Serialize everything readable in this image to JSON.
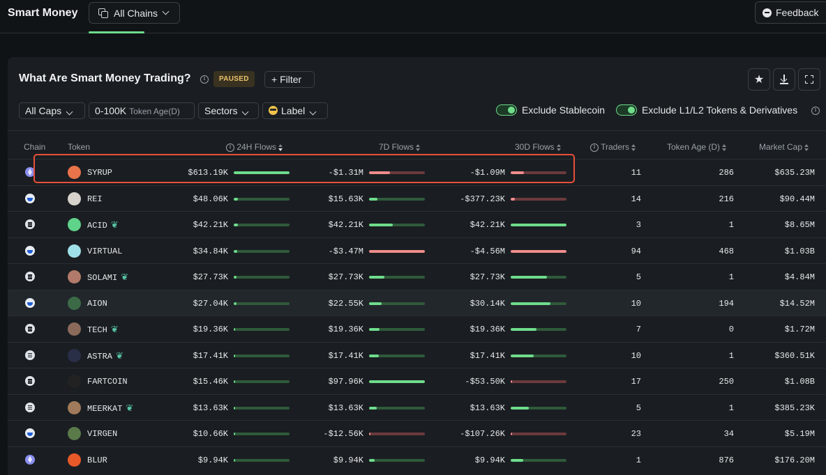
{
  "topbar": {
    "brand": "Smart Money",
    "chains_label": "All Chains",
    "feedback_label": "Feedback"
  },
  "panel": {
    "title": "What Are Smart Money Trading?",
    "paused": "PAUSED",
    "filter_label": "+ Filter",
    "chips": {
      "caps": "All Caps",
      "age_range": "0-100K",
      "age_sub": "Token Age(D)",
      "sectors": "Sectors",
      "label": "Label"
    },
    "toggles": {
      "stablecoin": "Exclude Stablecoin",
      "l1l2": "Exclude L1/L2 Tokens & Derivatives"
    }
  },
  "table": {
    "headers": {
      "chain": "Chain",
      "token": "Token",
      "flows24": "24H Flows",
      "flows7": "7D Flows",
      "flows30": "30D Flows",
      "traders": "Traders",
      "age": "Token Age (D)",
      "mcap": "Market Cap"
    },
    "rows": [
      {
        "chain": "eth",
        "token": "SYRUP",
        "leaf": false,
        "icon": "#e9744a",
        "f24": "$613.19K",
        "b24": 1.0,
        "n24": false,
        "f7": "-$1.31M",
        "b7": 0.38,
        "n7": true,
        "f30": "-$1.09M",
        "b30": 0.24,
        "n30": true,
        "traders": "11",
        "age": "286",
        "mcap": "$635.23M"
      },
      {
        "chain": "base",
        "token": "REI",
        "leaf": false,
        "icon": "#d8d2cc",
        "f24": "$48.06K",
        "b24": 0.08,
        "n24": false,
        "f7": "$15.63K",
        "b7": 0.15,
        "n7": false,
        "f30": "-$377.23K",
        "b30": 0.08,
        "n30": true,
        "traders": "14",
        "age": "216",
        "mcap": "$90.44M"
      },
      {
        "chain": "sol",
        "token": "ACID",
        "leaf": true,
        "icon": "#5fd38a",
        "f24": "$42.21K",
        "b24": 0.07,
        "n24": false,
        "f7": "$42.21K",
        "b7": 0.42,
        "n7": false,
        "f30": "$42.21K",
        "b30": 1.0,
        "n30": false,
        "traders": "3",
        "age": "1",
        "mcap": "$8.65M"
      },
      {
        "chain": "base",
        "token": "VIRTUAL",
        "leaf": false,
        "icon": "#9fe0e8",
        "f24": "$34.84K",
        "b24": 0.06,
        "n24": false,
        "f7": "-$3.47M",
        "b7": 1.0,
        "n7": true,
        "f30": "-$4.56M",
        "b30": 1.0,
        "n30": true,
        "traders": "94",
        "age": "468",
        "mcap": "$1.03B"
      },
      {
        "chain": "sol",
        "token": "SOLAMI",
        "leaf": true,
        "icon": "#b27a6a",
        "f24": "$27.73K",
        "b24": 0.05,
        "n24": false,
        "f7": "$27.73K",
        "b7": 0.28,
        "n7": false,
        "f30": "$27.73K",
        "b30": 0.65,
        "n30": false,
        "traders": "5",
        "age": "1",
        "mcap": "$4.84M"
      },
      {
        "chain": "base",
        "token": "AION",
        "leaf": false,
        "icon": "#3c6a46",
        "f24": "$27.04K",
        "b24": 0.05,
        "n24": false,
        "f7": "$22.55K",
        "b7": 0.22,
        "n7": false,
        "f30": "$30.14K",
        "b30": 0.71,
        "n30": false,
        "traders": "10",
        "age": "194",
        "mcap": "$14.52M"
      },
      {
        "chain": "sol",
        "token": "TECH",
        "leaf": true,
        "icon": "#8a6a5a",
        "f24": "$19.36K",
        "b24": 0.03,
        "n24": false,
        "f7": "$19.36K",
        "b7": 0.19,
        "n7": false,
        "f30": "$19.36K",
        "b30": 0.46,
        "n30": false,
        "traders": "7",
        "age": "0",
        "mcap": "$1.72M"
      },
      {
        "chain": "sol",
        "token": "ASTRA",
        "leaf": true,
        "icon": "#2a2f48",
        "f24": "$17.41K",
        "b24": 0.03,
        "n24": false,
        "f7": "$17.41K",
        "b7": 0.17,
        "n7": false,
        "f30": "$17.41K",
        "b30": 0.41,
        "n30": false,
        "traders": "10",
        "age": "1",
        "mcap": "$360.51K"
      },
      {
        "chain": "sol",
        "token": "FARTCOIN",
        "leaf": false,
        "icon": "#222222",
        "f24": "$15.46K",
        "b24": 0.03,
        "n24": false,
        "f7": "$97.96K",
        "b7": 1.0,
        "n7": false,
        "f30": "-$53.50K",
        "b30": 0.02,
        "n30": true,
        "traders": "17",
        "age": "250",
        "mcap": "$1.08B"
      },
      {
        "chain": "sol",
        "token": "MEERKAT",
        "leaf": true,
        "icon": "#a07a5a",
        "f24": "$13.63K",
        "b24": 0.02,
        "n24": false,
        "f7": "$13.63K",
        "b7": 0.14,
        "n7": false,
        "f30": "$13.63K",
        "b30": 0.32,
        "n30": false,
        "traders": "5",
        "age": "1",
        "mcap": "$385.23K"
      },
      {
        "chain": "base",
        "token": "VIRGEN",
        "leaf": false,
        "icon": "#5a7a4a",
        "f24": "$10.66K",
        "b24": 0.02,
        "n24": false,
        "f7": "-$12.56K",
        "b7": 0.01,
        "n7": true,
        "f30": "-$107.26K",
        "b30": 0.03,
        "n30": true,
        "traders": "23",
        "age": "34",
        "mcap": "$5.19M"
      },
      {
        "chain": "eth",
        "token": "BLUR",
        "leaf": false,
        "icon": "#e8592a",
        "f24": "$9.94K",
        "b24": 0.02,
        "n24": false,
        "f7": "$9.94K",
        "b7": 0.1,
        "n7": false,
        "f30": "$9.94K",
        "b30": 0.23,
        "n30": false,
        "traders": "1",
        "age": "876",
        "mcap": "$176.20M"
      }
    ]
  }
}
